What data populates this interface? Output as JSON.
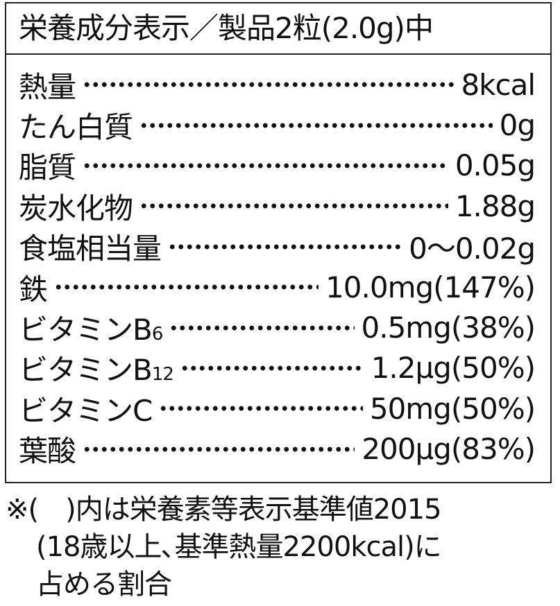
{
  "header": {
    "title": "栄養成分表示／製品2粒(2.0g)中"
  },
  "rows": [
    {
      "label": "熱量",
      "sub": "",
      "value": "8kcal"
    },
    {
      "label": "たん白質",
      "sub": "",
      "value": "0g"
    },
    {
      "label": "脂質",
      "sub": "",
      "value": "0.05g"
    },
    {
      "label": "炭水化物",
      "sub": "",
      "value": "1.88g"
    },
    {
      "label": "食塩相当量",
      "sub": "",
      "value": "0～0.02g"
    },
    {
      "label": "鉄",
      "sub": "",
      "value": "10.0mg(147%)"
    },
    {
      "label": "ビタミンB",
      "sub": "6",
      "value": "0.5mg(38%)"
    },
    {
      "label": "ビタミンB",
      "sub": "12",
      "value": "1.2μg(50%)"
    },
    {
      "label": "ビタミンC",
      "sub": "",
      "value": "50mg(50%)"
    },
    {
      "label": "葉酸",
      "sub": "",
      "value": "200μg(83%)"
    }
  ],
  "footnote": {
    "line1": "※(　)内は栄養素等表示基準値2015",
    "line2": "(18歳以上､基準熱量2200kcal)に",
    "line3": "占める割合"
  }
}
